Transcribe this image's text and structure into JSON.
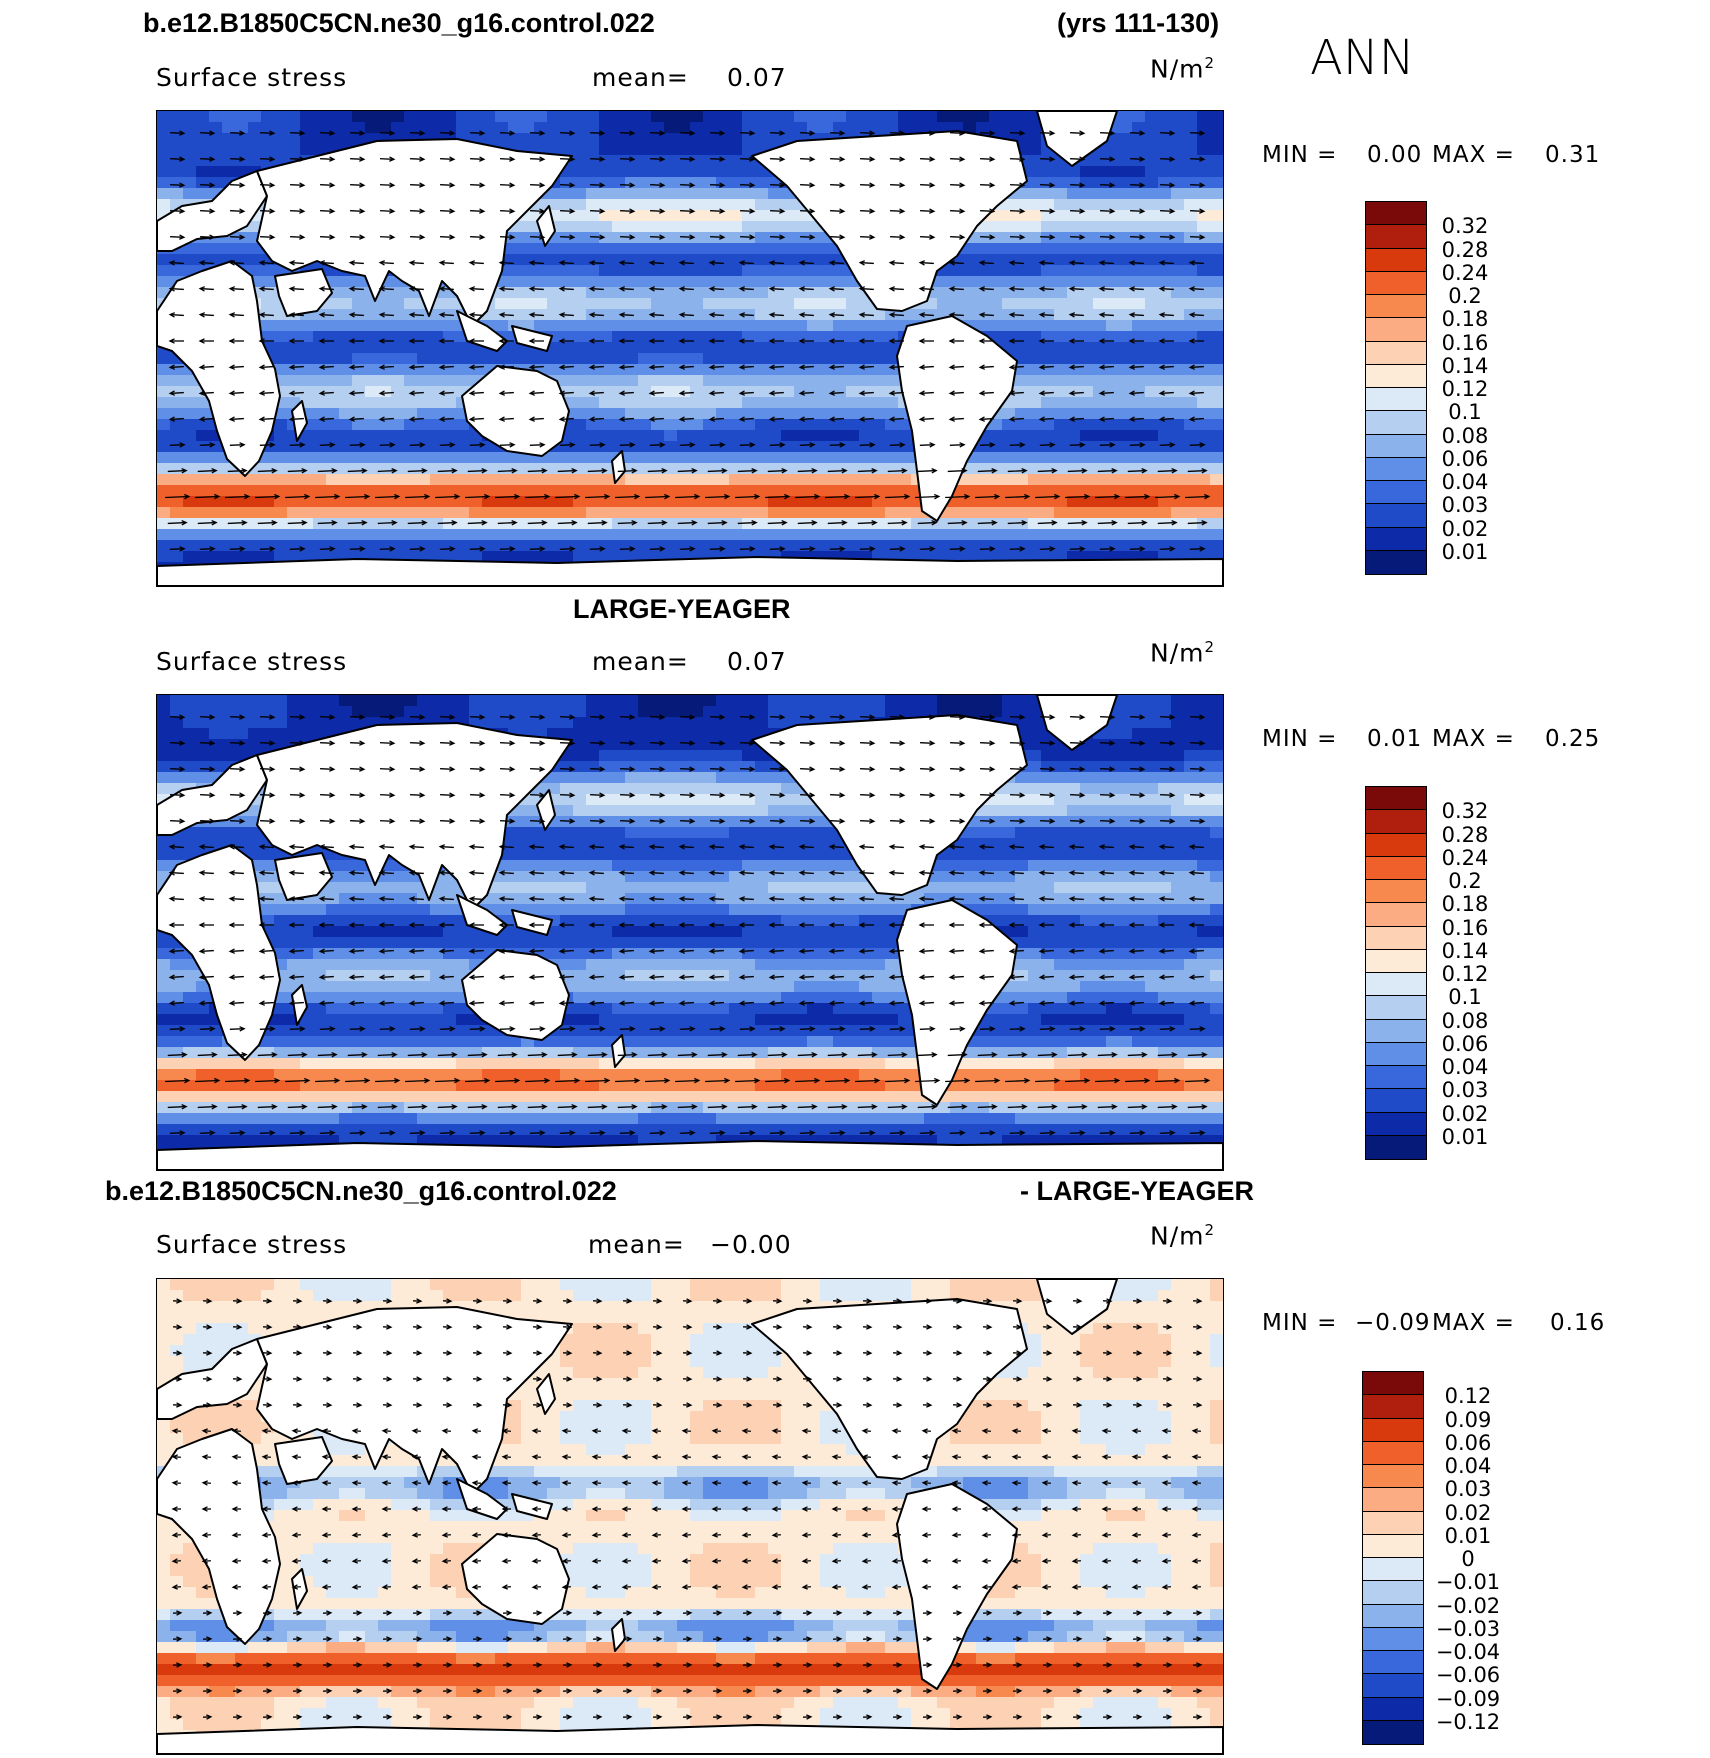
{
  "header": {
    "case_name": "b.e12.B1850C5CN.ne30_g16.control.022",
    "years": "(yrs 111-130)",
    "season": "ANN"
  },
  "panels": [
    {
      "id": "model",
      "variable": "Surface stress",
      "mean_label": "mean=",
      "mean_value": "0.07",
      "units_base": "N/m",
      "units_exp": "2",
      "min_label": "MIN =",
      "min_value": "0.00",
      "max_label": "MAX =",
      "max_value": "0.31",
      "colorbar": [
        "0.32",
        "0.28",
        "0.24",
        "0.2",
        "0.18",
        "0.16",
        "0.14",
        "0.12",
        "0.1",
        "0.08",
        "0.06",
        "0.04",
        "0.03",
        "0.02",
        "0.01"
      ]
    },
    {
      "id": "obs",
      "title": "LARGE-YEAGER",
      "variable": "Surface stress",
      "mean_label": "mean=",
      "mean_value": "0.07",
      "units_base": "N/m",
      "units_exp": "2",
      "min_label": "MIN =",
      "min_value": "0.01",
      "max_label": "MAX =",
      "max_value": "0.25",
      "colorbar": [
        "0.32",
        "0.28",
        "0.24",
        "0.2",
        "0.18",
        "0.16",
        "0.14",
        "0.12",
        "0.1",
        "0.08",
        "0.06",
        "0.04",
        "0.03",
        "0.02",
        "0.01"
      ]
    },
    {
      "id": "diff",
      "title_left": "b.e12.B1850C5CN.ne30_g16.control.022",
      "title_right": "- LARGE-YEAGER",
      "variable": "Surface stress",
      "mean_label": "mean=",
      "mean_value": "−0.00",
      "units_base": "N/m",
      "units_exp": "2",
      "min_label": "MIN =",
      "min_value": "−0.09",
      "max_label": "MAX =",
      "max_value": "0.16",
      "colorbar": [
        "0.12",
        "0.09",
        "0.06",
        "0.04",
        "0.03",
        "0.02",
        "0.01",
        "0",
        "−0.01",
        "−0.02",
        "−0.03",
        "−0.04",
        "−0.06",
        "−0.09",
        "−0.12"
      ]
    }
  ],
  "colors": {
    "abs_scale": [
      "#7a0a0a",
      "#b01e0e",
      "#d83a0e",
      "#f0602a",
      "#f7894e",
      "#fbac82",
      "#fdd2b4",
      "#fdebd8",
      "#dce9f7",
      "#b5cff0",
      "#8cb2ec",
      "#5f8fe6",
      "#3868db",
      "#1f4ac8",
      "#0d2aa8",
      "#061a7a"
    ],
    "diff_scale": [
      "#7a0a0a",
      "#b01e0e",
      "#d83a0e",
      "#f0602a",
      "#f7894e",
      "#fbac82",
      "#fdd2b4",
      "#fdebd8",
      "#dce9f7",
      "#b5cff0",
      "#8cb2ec",
      "#5f8fe6",
      "#3868db",
      "#1f4ac8",
      "#0d2aa8",
      "#061a7a"
    ],
    "land": "#ffffff",
    "coast": "#000000"
  }
}
